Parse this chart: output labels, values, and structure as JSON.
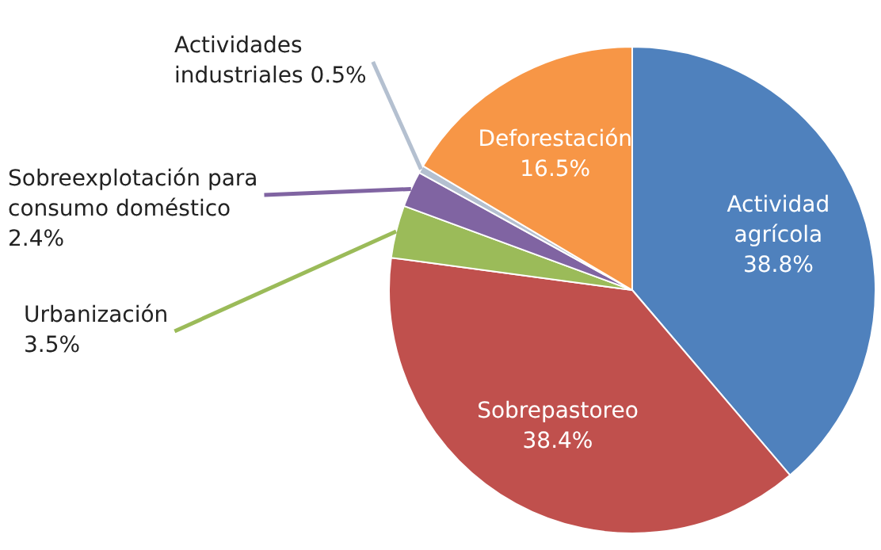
{
  "chart_data": {
    "type": "pie",
    "categories": [
      "Actividad agrícola",
      "Sobrepastoreo",
      "Urbanización",
      "Sobreexplotación para consumo doméstico",
      "Actividades industriales",
      "Deforestación"
    ],
    "values": [
      38.8,
      38.4,
      3.5,
      2.4,
      0.5,
      16.5
    ],
    "colors": [
      "#4f81bd",
      "#c0504d",
      "#9bbb59",
      "#8064a2",
      "#b4c0d0",
      "#f79646"
    ],
    "value_labels": [
      "38.8%",
      "38.4%",
      "3.5%",
      "2.4%",
      "0.5%",
      "16.5%"
    ]
  }
}
